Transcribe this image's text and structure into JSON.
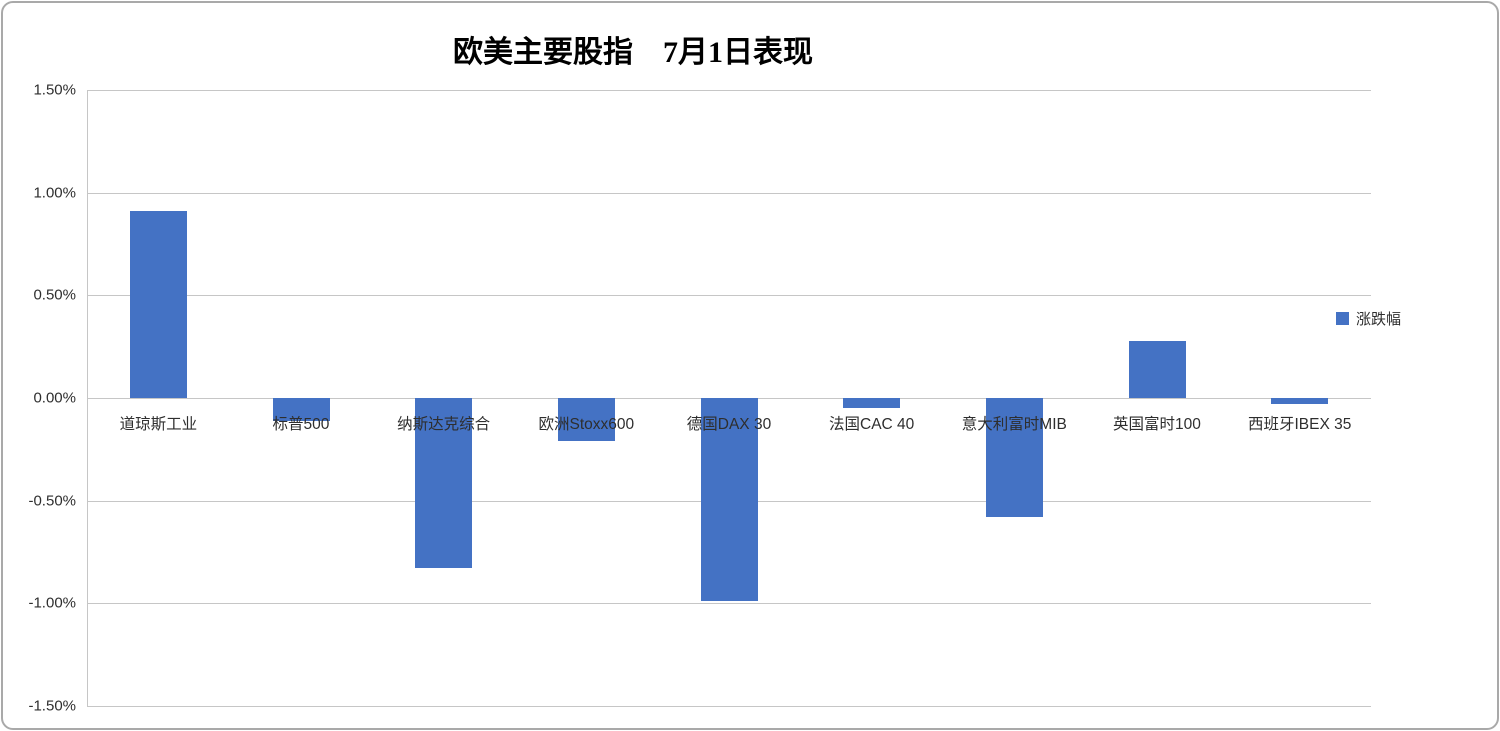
{
  "chart_data": {
    "type": "bar",
    "title": "欧美主要股指　7月1日表现",
    "categories": [
      "道琼斯工业",
      "标普500",
      "纳斯达克综合",
      "欧洲Stoxx600",
      "德国DAX 30",
      "法国CAC 40",
      "意大利富时MIB",
      "英国富时100",
      "西班牙IBEX 35"
    ],
    "series": [
      {
        "name": "涨跌幅",
        "values": [
          0.91,
          -0.11,
          -0.83,
          -0.21,
          -0.99,
          -0.05,
          -0.58,
          0.28,
          -0.03
        ]
      }
    ],
    "unit": "%",
    "ylim": [
      -1.5,
      1.5
    ],
    "ytick_values": [
      1.5,
      1.0,
      0.5,
      0.0,
      -0.5,
      -1.0,
      -1.5
    ],
    "ytick_labels": [
      "1.50%",
      "1.00%",
      "0.50%",
      "0.00%",
      "-0.50%",
      "-1.00%",
      "-1.50%"
    ],
    "grid": true,
    "legend_position": "right",
    "bar_color": "#4472c4",
    "gridline_color": "#c6c6c6"
  }
}
